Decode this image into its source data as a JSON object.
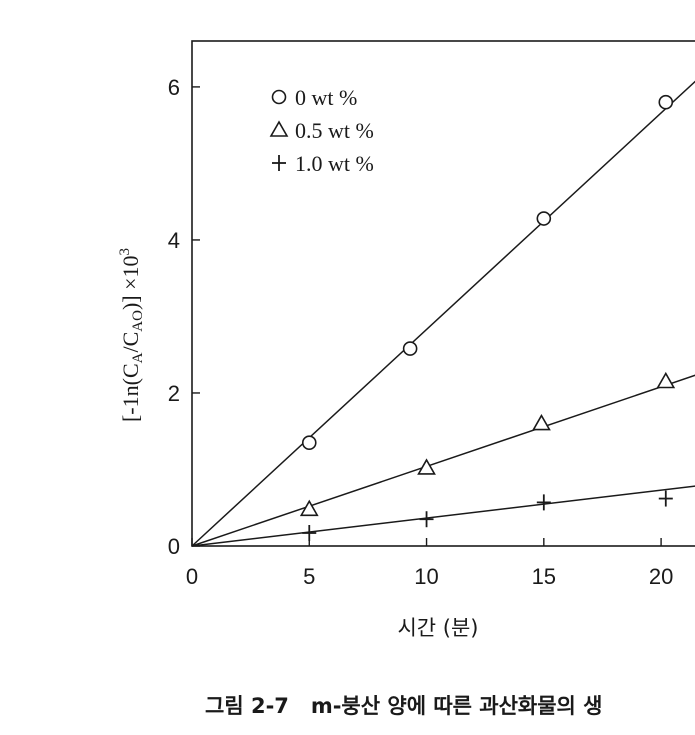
{
  "chart_data": {
    "type": "scatter",
    "xlabel": "시간 (분)",
    "ylabel": {
      "parts": [
        "[-1n(C",
        "A",
        "/C",
        "AO",
        ")] ×10",
        "3"
      ]
    },
    "xlim": [
      0,
      22
    ],
    "ylim": [
      0,
      6.6
    ],
    "x_ticks": [
      0,
      5,
      10,
      15,
      20
    ],
    "y_ticks": [
      0,
      2,
      4,
      6
    ],
    "grid": false,
    "legend_placement": "top-left",
    "series": [
      {
        "name": "0  wt %",
        "marker": "circle",
        "x": [
          5,
          9.3,
          15,
          20.2
        ],
        "y": [
          1.35,
          2.58,
          4.28,
          5.8
        ],
        "fit_slope": 0.283
      },
      {
        "name": "0.5  wt %",
        "marker": "triangle",
        "x": [
          5,
          10,
          14.9,
          20.2
        ],
        "y": [
          0.48,
          1.02,
          1.6,
          2.15
        ],
        "fit_slope": 0.104
      },
      {
        "name": "1.0  wt %",
        "marker": "plus",
        "x": [
          5,
          10,
          15,
          20.2
        ],
        "y": [
          0.17,
          0.35,
          0.57,
          0.62
        ],
        "fit_slope": 0.0365
      }
    ]
  },
  "caption": "그림 2-7   m-붕산 양에 따른 과산화물의 생"
}
